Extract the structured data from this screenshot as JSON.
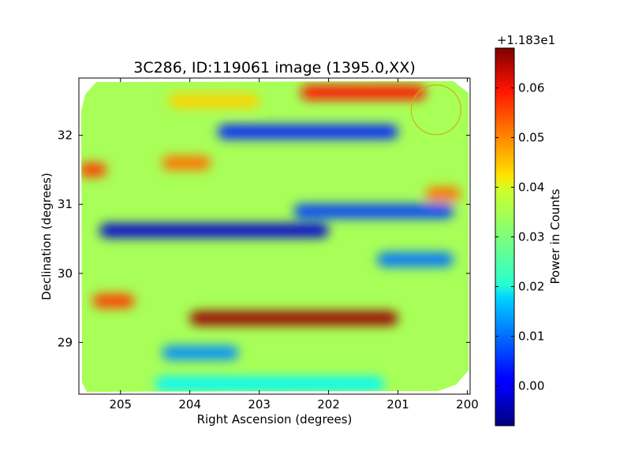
{
  "chart_data": [
    {
      "type": "heatmap",
      "title": "3C286, ID:119061 image (1395.0,XX)",
      "xlabel": "Right Ascension (degrees)",
      "ylabel": "Declination (degrees)",
      "xlim": [
        205.6,
        199.96
      ],
      "ylim": [
        28.25,
        32.83
      ],
      "x_ticks": [
        205,
        204,
        203,
        202,
        201,
        200
      ],
      "x_tick_labels": [
        "205",
        "204",
        "203",
        "202",
        "201",
        "200"
      ],
      "y_ticks": [
        29,
        30,
        31,
        32
      ],
      "y_tick_labels": [
        "29",
        "30",
        "31",
        "32"
      ],
      "grid": false,
      "colormap": "jet",
      "bands": [
        {
          "dec": 32.62,
          "value": 0.058,
          "ra_from": 202.4,
          "ra_to": 200.6
        },
        {
          "dec": 32.5,
          "value": 0.043,
          "ra_from": 204.3,
          "ra_to": 203.0
        },
        {
          "dec": 32.05,
          "value": 0.004,
          "ra_from": 203.6,
          "ra_to": 201.0
        },
        {
          "dec": 31.6,
          "value": 0.05,
          "ra_from": 204.4,
          "ra_to": 203.7
        },
        {
          "dec": 31.5,
          "value": 0.054,
          "ra_from": 205.6,
          "ra_to": 205.2
        },
        {
          "dec": 31.15,
          "value": 0.05,
          "ra_from": 200.6,
          "ra_to": 200.1
        },
        {
          "dec": 30.9,
          "value": 0.006,
          "ra_from": 202.5,
          "ra_to": 200.2
        },
        {
          "dec": 30.62,
          "value": -0.002,
          "ra_from": 205.3,
          "ra_to": 202.0
        },
        {
          "dec": 30.2,
          "value": 0.01,
          "ra_from": 201.3,
          "ra_to": 200.2
        },
        {
          "dec": 29.6,
          "value": 0.054,
          "ra_from": 205.4,
          "ra_to": 204.8
        },
        {
          "dec": 29.35,
          "value": 0.066,
          "ra_from": 204.0,
          "ra_to": 201.0
        },
        {
          "dec": 28.85,
          "value": 0.012,
          "ra_from": 204.4,
          "ra_to": 203.3
        },
        {
          "dec": 28.4,
          "value": 0.02,
          "ra_from": 204.5,
          "ra_to": 201.2
        }
      ],
      "background_value": 0.033,
      "marker": {
        "type": "circle",
        "ra": 200.45,
        "dec": 32.37,
        "radius_deg": 0.36,
        "color": "#c8b416"
      }
    },
    {
      "type": "colorbar",
      "label": "Power in Counts",
      "offset_text": "+1.183e1",
      "range": [
        -0.008,
        0.068
      ],
      "ticks": [
        0.0,
        0.01,
        0.02,
        0.03,
        0.04,
        0.05,
        0.06
      ],
      "tick_labels": [
        "0.00",
        "0.01",
        "0.02",
        "0.03",
        "0.04",
        "0.05",
        "0.06"
      ]
    }
  ],
  "colors": {
    "jet_low": "#00007f",
    "jet_mid": "#7fff7f",
    "jet_high": "#7f0000",
    "frame": "#000000",
    "background": "#ffffff"
  }
}
